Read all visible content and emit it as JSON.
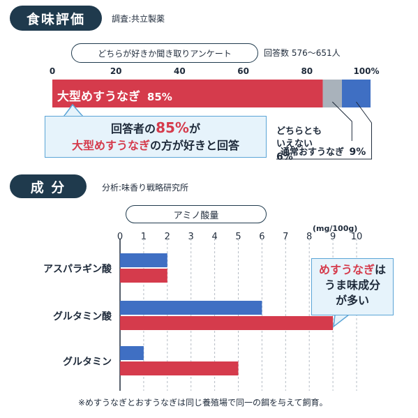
{
  "section1": {
    "title": "食味評価",
    "survey_note": "調査:共立製薬",
    "survey_title": "どちらが好きか聞き取りアンケート",
    "respondents": "回答数 576〜651人"
  },
  "section2": {
    "title": "成 分",
    "analysis_note": "分析:味香り戦略研究所",
    "chart_title": "アミノ酸量"
  },
  "callout1": {
    "line1_pre": "回答者の",
    "line1_num": "85%",
    "line1_post": "が",
    "line2_red": "大型めすうなぎ",
    "line2_post": "の方が好きと回答"
  },
  "callout2": {
    "line1_red": "めすうなぎ",
    "line1_post": "は",
    "line2": "うま味成分",
    "line3": "が多い"
  },
  "footnote": "※めすうなぎとおすうなぎは同じ養殖場で同一の餌を与えて飼育。",
  "colors": {
    "female": "#d53b4c",
    "normal": "#3f6fc3",
    "neither": "#a9b2bb",
    "navy": "#1f3a4d"
  },
  "chart_data": [
    {
      "type": "bar",
      "orientation": "horizontal-stacked",
      "x_ticks": [
        "0",
        "20",
        "40",
        "60",
        "80",
        "100%"
      ],
      "xlim": [
        0,
        100
      ],
      "segments": [
        {
          "name": "大型めすうなぎ",
          "label_value": "85%",
          "value": 85
        },
        {
          "name": "どちらとも\nいえない",
          "label_value": "6%",
          "value": 6
        },
        {
          "name": "通常おすうなぎ",
          "label_value": "9%",
          "value": 9
        }
      ]
    },
    {
      "type": "bar",
      "orientation": "horizontal",
      "unit": "(mg/100g)",
      "x_ticks": [
        "0",
        "1",
        "2",
        "3",
        "4",
        "5",
        "6",
        "7",
        "8",
        "9",
        "10"
      ],
      "xlim": [
        0,
        10
      ],
      "grid": true,
      "categories": [
        "アスパラギン酸",
        "グルタミン酸",
        "グルタミン"
      ],
      "series": [
        {
          "values": [
            2.0,
            6.0,
            1.0
          ]
        },
        {
          "values": [
            2.0,
            9.0,
            5.0
          ]
        }
      ]
    }
  ]
}
